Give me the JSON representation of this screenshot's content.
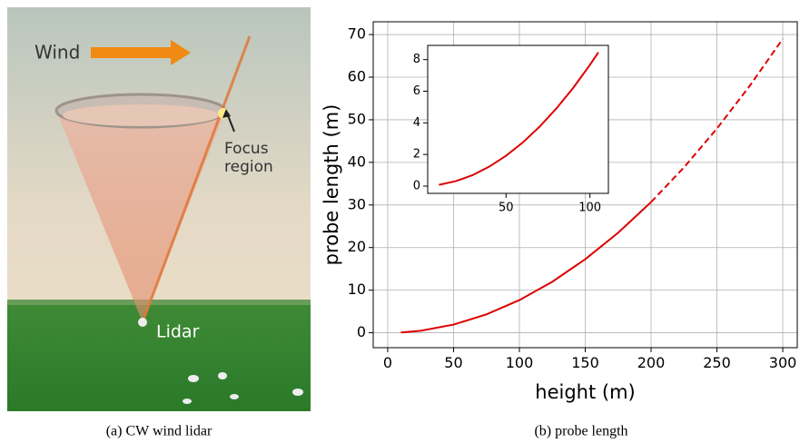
{
  "figure": {
    "photo": {
      "wind": "Wind",
      "focus": [
        "Focus",
        "region"
      ],
      "lidar": "Lidar"
    },
    "captions": [
      "(a) CW wind lidar",
      "(b) probe length"
    ]
  },
  "chart_data": [
    {
      "type": "line",
      "xlabel": "height (m)",
      "ylabel": "probe length (m)",
      "x": [
        10,
        25,
        50,
        75,
        100,
        125,
        150,
        175,
        200,
        225,
        250,
        275,
        300
      ],
      "series": [
        {
          "color": "#dd0000",
          "linestyle": "solid",
          "values": [
            0.08,
            0.48,
            1.92,
            4.31,
            7.67,
            11.98,
            17.26,
            23.49,
            30.68,
            null,
            null,
            null,
            null
          ]
        },
        {
          "color": "#dd0000",
          "linestyle": "dashed",
          "values": [
            null,
            null,
            null,
            null,
            null,
            null,
            null,
            null,
            30.68,
            38.83,
            47.94,
            58.0,
            69.0
          ]
        }
      ],
      "xlim": [
        -11,
        311
      ],
      "ylim": [
        -3.5,
        73
      ],
      "xticks": [
        0,
        50,
        100,
        150,
        200,
        250,
        300
      ],
      "yticks": [
        0,
        10,
        20,
        30,
        40,
        50,
        60,
        70
      ],
      "grid": true
    },
    {
      "type": "line",
      "x": [
        10,
        20,
        30,
        40,
        50,
        60,
        70,
        80,
        90,
        100,
        105
      ],
      "series": [
        {
          "color": "#dd0000",
          "linestyle": "solid",
          "values": [
            0.08,
            0.31,
            0.69,
            1.23,
            1.92,
            2.76,
            3.76,
            4.91,
            6.21,
            7.67,
            8.46
          ]
        }
      ],
      "xlim": [
        3.3,
        111
      ],
      "ylim": [
        -0.46,
        8.9
      ],
      "xticks": [
        50,
        100
      ],
      "yticks": [
        0,
        2,
        4,
        6,
        8
      ],
      "grid": false
    }
  ]
}
